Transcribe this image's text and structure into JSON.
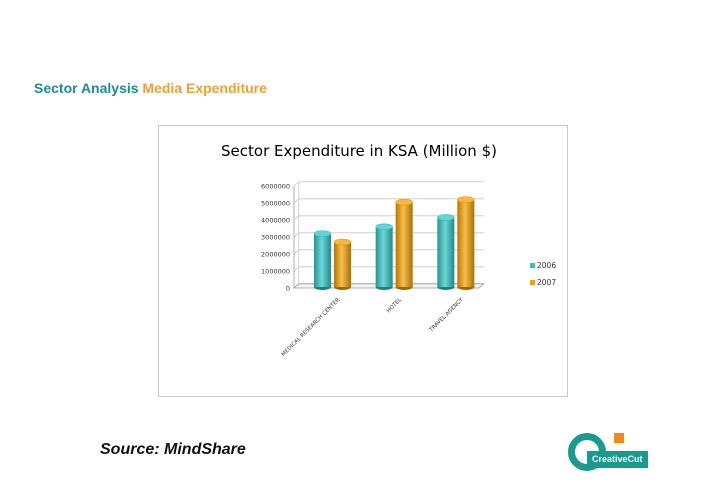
{
  "slide": {
    "title_part1": "Sector Analysis",
    "title_part2": "Media Expenditure",
    "source": "Source: MindShare"
  },
  "logo": {
    "text": "CreativeCut"
  },
  "colors": {
    "series_2006": "#2fc5c5",
    "series_2007": "#f4a000",
    "title_teal": "#1a8f8f",
    "title_orange": "#f0a030"
  },
  "chart_data": {
    "type": "bar",
    "title": "Sector Expenditure in KSA (Million $)",
    "categories": [
      "MEDICAL RESEARCH CENTER",
      "HOTEL",
      "TRAVEL AGENCY"
    ],
    "series": [
      {
        "name": "2006",
        "values": [
          3200000,
          3600000,
          4150000
        ]
      },
      {
        "name": "2007",
        "values": [
          2700000,
          5050000,
          5200000
        ]
      }
    ],
    "y_ticks": [
      0,
      1000000,
      2000000,
      3000000,
      4000000,
      5000000,
      6000000
    ],
    "ylim": [
      0,
      6000000
    ],
    "xlabel": "",
    "ylabel": "",
    "legend_position": "right",
    "style": "3d-cylinder"
  }
}
